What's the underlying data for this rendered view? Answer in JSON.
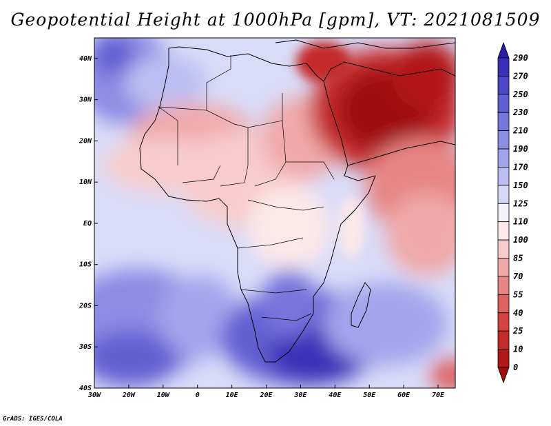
{
  "title": "Geopotential Height at 1000hPa [gpm], VT: 2021081509",
  "footer": "GrADS: IGES/COLA",
  "map": {
    "projection": "lat-lon",
    "lon_range": [
      -30,
      75
    ],
    "lat_range": [
      -40,
      45
    ],
    "x_ticks": [
      {
        "value": -30,
        "label": "30W"
      },
      {
        "value": -20,
        "label": "20W"
      },
      {
        "value": -10,
        "label": "10W"
      },
      {
        "value": 0,
        "label": "0"
      },
      {
        "value": 10,
        "label": "10E"
      },
      {
        "value": 20,
        "label": "20E"
      },
      {
        "value": 30,
        "label": "30E"
      },
      {
        "value": 40,
        "label": "40E"
      },
      {
        "value": 50,
        "label": "50E"
      },
      {
        "value": 60,
        "label": "60E"
      },
      {
        "value": 70,
        "label": "70E"
      }
    ],
    "y_ticks": [
      {
        "value": 40,
        "label": "40N"
      },
      {
        "value": 30,
        "label": "30N"
      },
      {
        "value": 20,
        "label": "20N"
      },
      {
        "value": 10,
        "label": "10N"
      },
      {
        "value": 0,
        "label": "EQ"
      },
      {
        "value": -10,
        "label": "10S"
      },
      {
        "value": -20,
        "label": "20S"
      },
      {
        "value": -30,
        "label": "30S"
      },
      {
        "value": -40,
        "label": "40S"
      }
    ]
  },
  "colorbar": {
    "levels_top_to_bottom": [
      "290",
      "270",
      "250",
      "230",
      "210",
      "190",
      "170",
      "150",
      "125",
      "110",
      "100",
      "85",
      "70",
      "55",
      "40",
      "25",
      "10",
      "0"
    ],
    "colors_top_to_bottom": [
      "#2a1aa8",
      "#3b31b8",
      "#4e48c6",
      "#6160d2",
      "#7676dc",
      "#8b8ce4",
      "#a3a5ec",
      "#bcbef3",
      "#d5d7f8",
      "#f2f3fd",
      "#fde9e9",
      "#f8cccc",
      "#f0a9a9",
      "#e78585",
      "#dd6262",
      "#d24444",
      "#c42b2b",
      "#b31818",
      "#a00d0d"
    ]
  }
}
